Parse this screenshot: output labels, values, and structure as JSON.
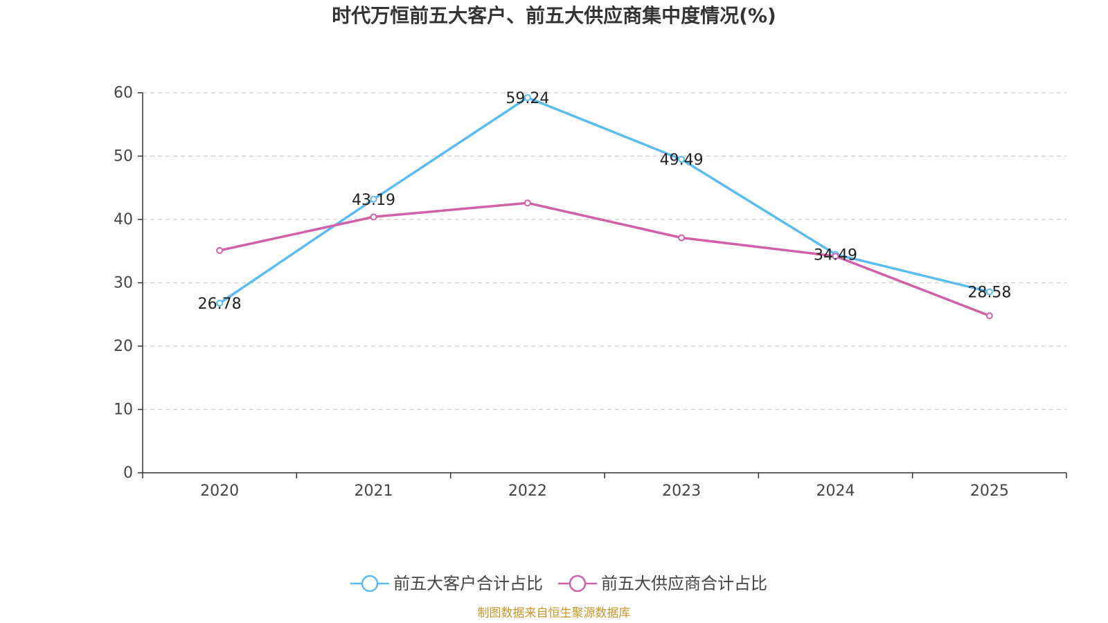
{
  "chart_data": {
    "type": "line",
    "title": "时代万恒前五大客户、前五大供应商集中度情况(%)",
    "categories": [
      "2020",
      "2021",
      "2022",
      "2023",
      "2024",
      "2025"
    ],
    "series": [
      {
        "name": "前五大客户合计占比",
        "color": "#5bbcf0",
        "values": [
          26.78,
          43.19,
          59.24,
          49.49,
          34.49,
          28.58
        ],
        "labels": [
          "26.78",
          "43.19",
          "59.24",
          "49.49",
          "34.49",
          "28.58"
        ]
      },
      {
        "name": "前五大供应商合计占比",
        "color": "#d060a8",
        "values": [
          35.1,
          40.4,
          42.6,
          37.1,
          34.2,
          24.8
        ],
        "labels": []
      }
    ],
    "ylim": [
      0,
      60
    ],
    "yticks": [
      "0",
      "10",
      "20",
      "30",
      "40",
      "50",
      "60"
    ],
    "xlabel": "",
    "ylabel": "",
    "grid": true,
    "legend_position": "bottom-center"
  },
  "source": "制图数据来自恒生聚源数据库"
}
